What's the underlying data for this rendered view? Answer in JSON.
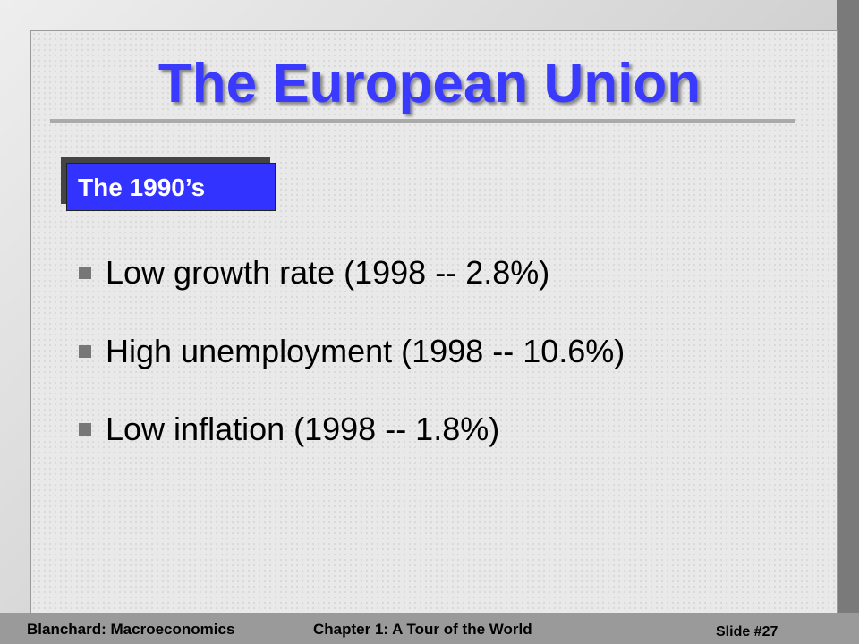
{
  "title": "The European Union",
  "section": "The 1990’s",
  "bullets": [
    "Low growth rate (1998 -- 2.8%)",
    "High unemployment (1998 -- 10.6%)",
    "Low inflation (1998 -- 1.8%)"
  ],
  "footer": {
    "left": "Blanchard: Macroeconomics",
    "center": "Chapter 1: A Tour of the World",
    "right": "Slide #27"
  }
}
